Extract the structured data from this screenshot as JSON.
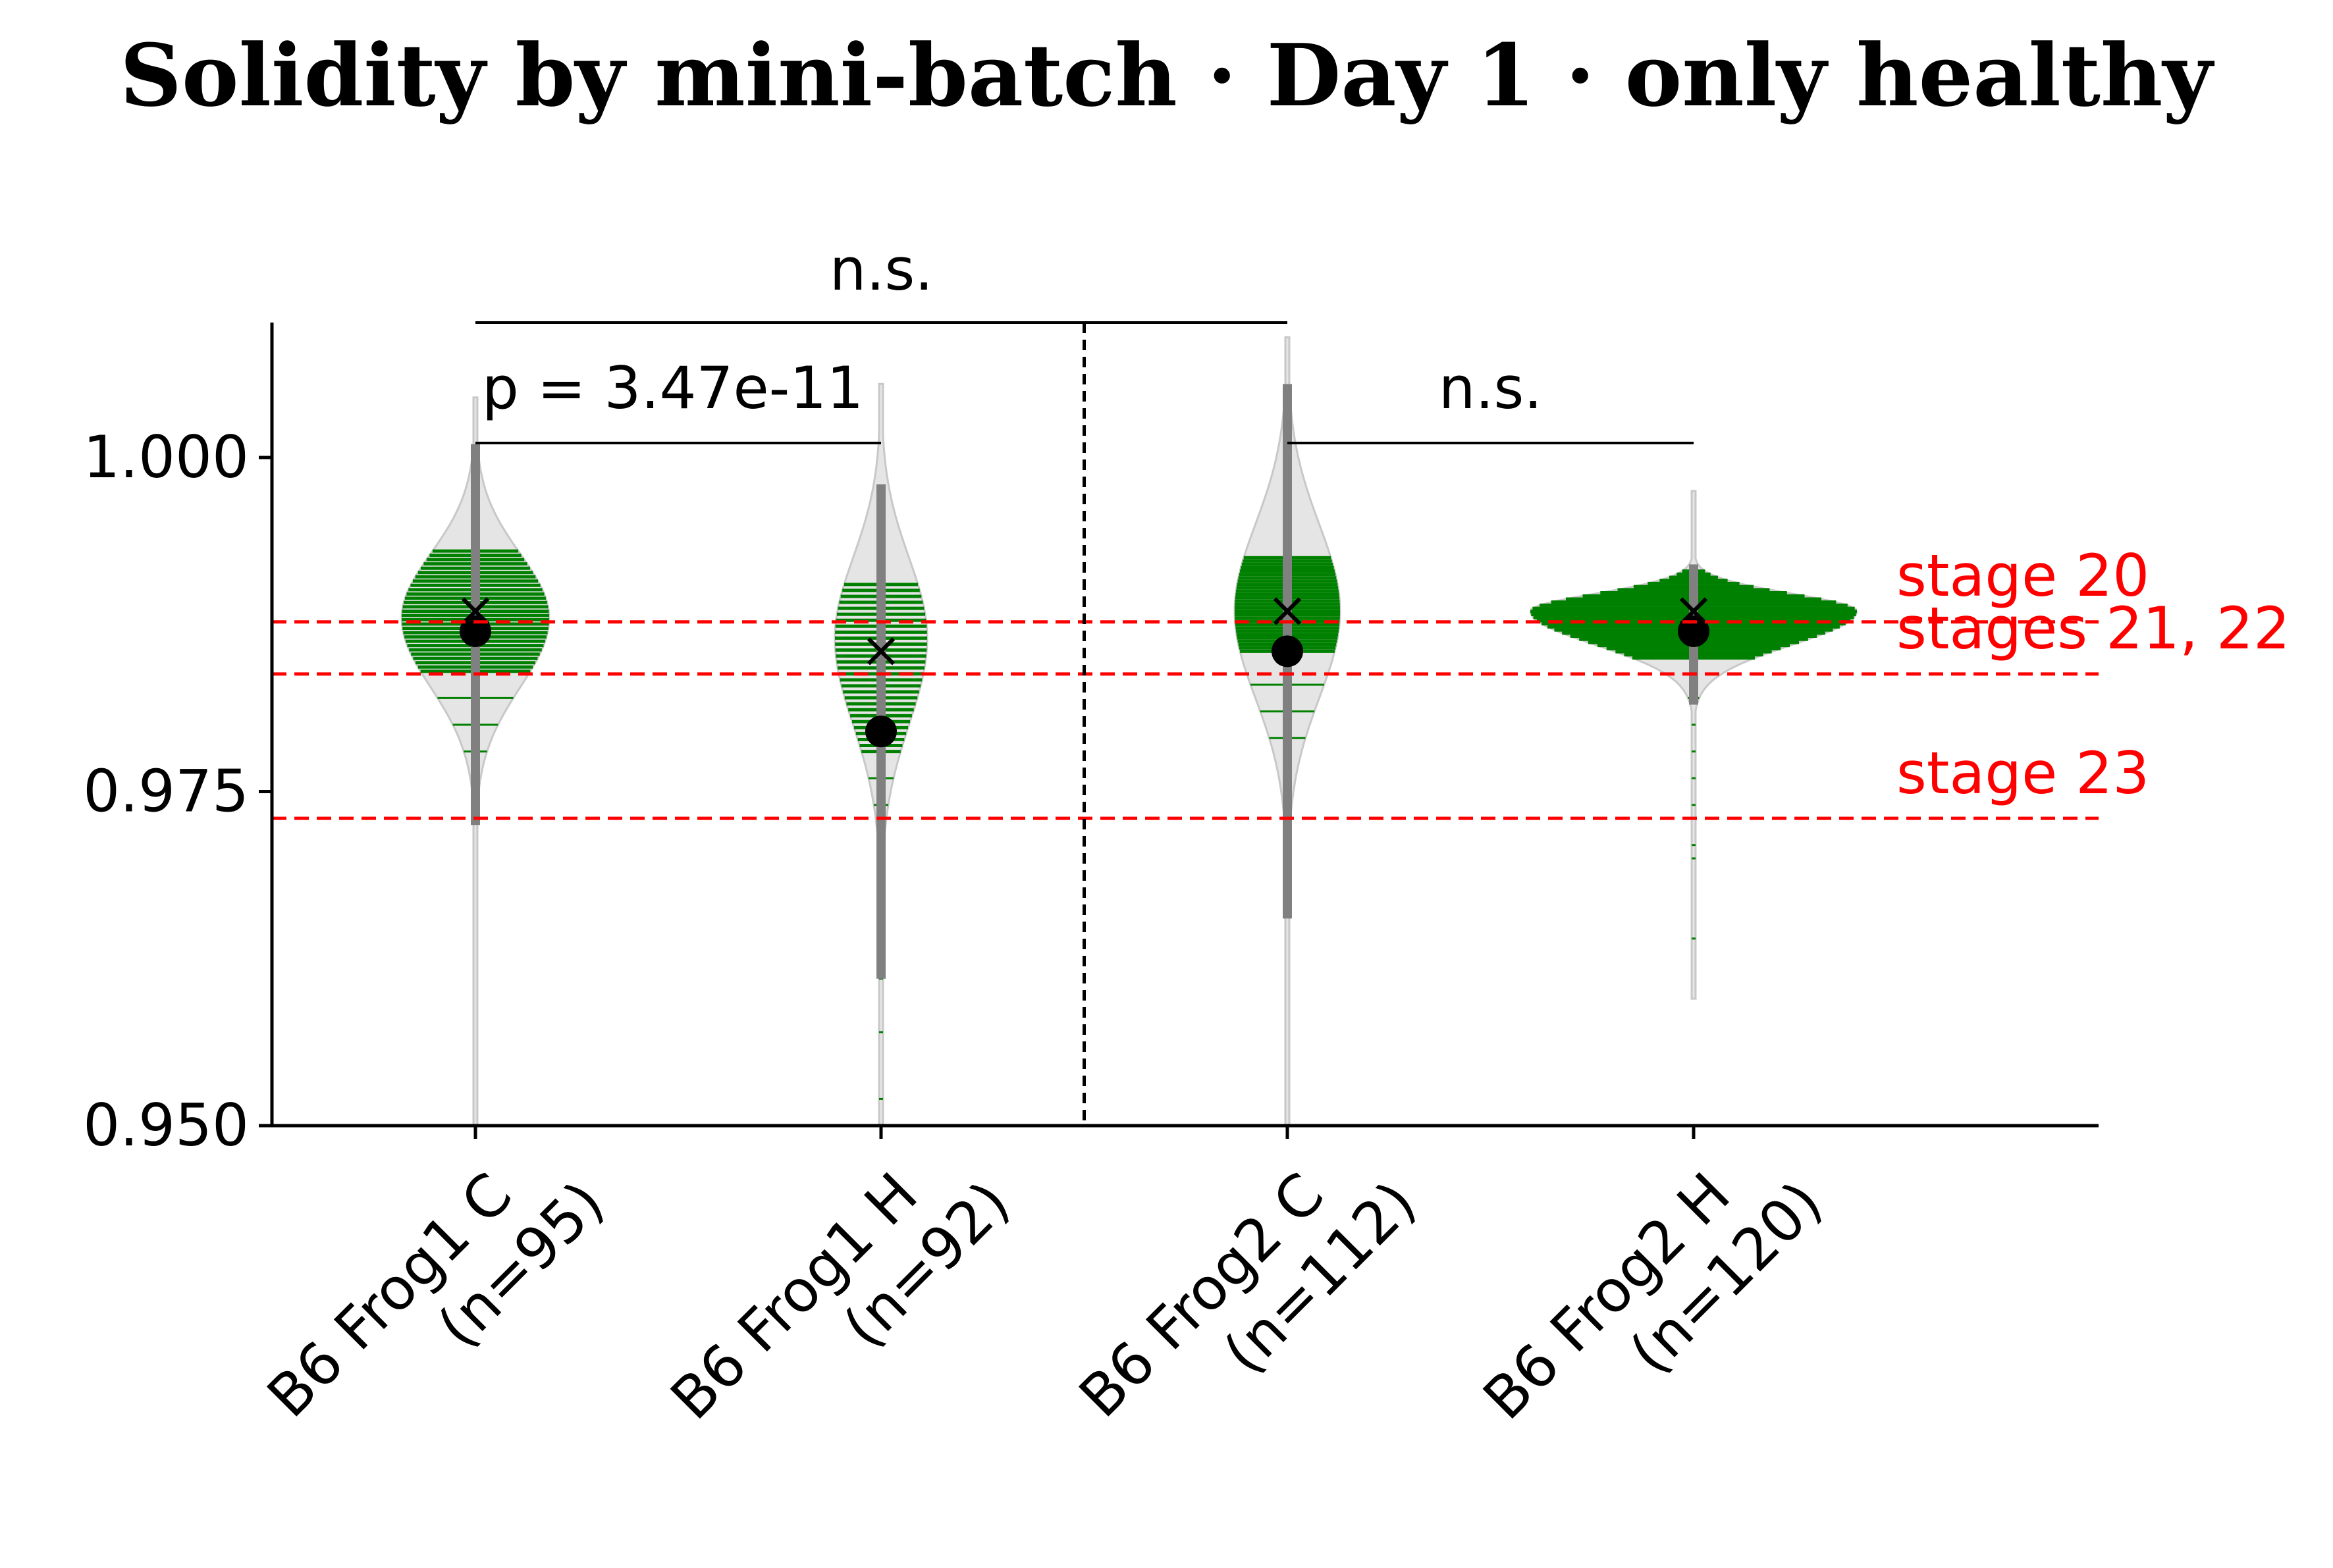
{
  "chart_data": {
    "type": "violin",
    "title": "Solidity by mini-batch · Day 1 · only healthy",
    "xlabel": "",
    "ylabel": "",
    "ylim": [
      0.95,
      1.01
    ],
    "yticks": [
      "1.000",
      "0.975",
      "0.950"
    ],
    "grid": false,
    "categories": [
      {
        "line1": "B6 Frog1 C",
        "line2": "(n=95)"
      },
      {
        "line1": "B6 Frog1 H",
        "line2": "(n=92)"
      },
      {
        "line1": "B6 Frog2 C",
        "line2": "(n=112)"
      },
      {
        "line1": "B6 Frog2 H",
        "line2": "(n=120)"
      }
    ],
    "groups": [
      {
        "n": 95,
        "min": 0.95,
        "max": 1.0045,
        "mean": 0.9885,
        "median": 0.987,
        "whisker": [
          0.9725,
          1.001
        ],
        "band": [
          0.984,
          0.993
        ],
        "shape": "spindle",
        "sparse": [
          0.978,
          0.98,
          0.982
        ]
      },
      {
        "n": 92,
        "min": 0.95,
        "max": 1.0055,
        "mean": 0.9855,
        "median": 0.9795,
        "whisker": [
          0.961,
          0.998
        ],
        "band": [
          0.978,
          0.9905
        ],
        "shape": "longtail",
        "sparse": [
          0.952,
          0.957,
          0.961,
          0.963,
          0.965,
          0.967,
          0.969,
          0.971,
          0.972,
          0.974,
          0.976
        ]
      },
      {
        "n": 112,
        "min": 0.95,
        "max": 1.009,
        "mean": 0.9885,
        "median": 0.9855,
        "whisker": [
          0.9655,
          1.0055
        ],
        "band": [
          0.9855,
          0.9925
        ],
        "shape": "tall",
        "sparse": [
          0.979,
          0.981,
          0.983
        ]
      },
      {
        "n": 120,
        "min": 0.9595,
        "max": 0.9975,
        "mean": 0.9885,
        "median": 0.987,
        "whisker": [
          0.9815,
          0.992
        ],
        "band": [
          0.985,
          0.9915
        ],
        "shape": "wide",
        "sparse": [
          0.964,
          0.97,
          0.971,
          0.974,
          0.976,
          0.978,
          0.98,
          0.982
        ]
      }
    ],
    "reference_lines": [
      {
        "label": "stage 20",
        "value": 0.9877
      },
      {
        "label": "stages 21, 22",
        "value": 0.9838
      },
      {
        "label": "stage 23",
        "value": 0.973
      }
    ],
    "annotations": [
      {
        "text": "p = 3.47e-11",
        "from": 0,
        "to": 1,
        "y": 1.001,
        "label_y": 1.0025
      },
      {
        "text": "n.s.",
        "from": 2,
        "to": 3,
        "y": 1.001,
        "label_y": 1.0025
      },
      {
        "text": "n.s.",
        "from": 0,
        "to": 2,
        "y": 1.01,
        "label_y": 1.012
      }
    ],
    "divider_after_index": 1,
    "colors": {
      "violin_fill": "#e5e5e5",
      "violin_edge": "#c8c8c8",
      "data_lines": "#008000",
      "whisker": "#808080",
      "markers": "#000000",
      "reference": "#ff0000"
    }
  }
}
